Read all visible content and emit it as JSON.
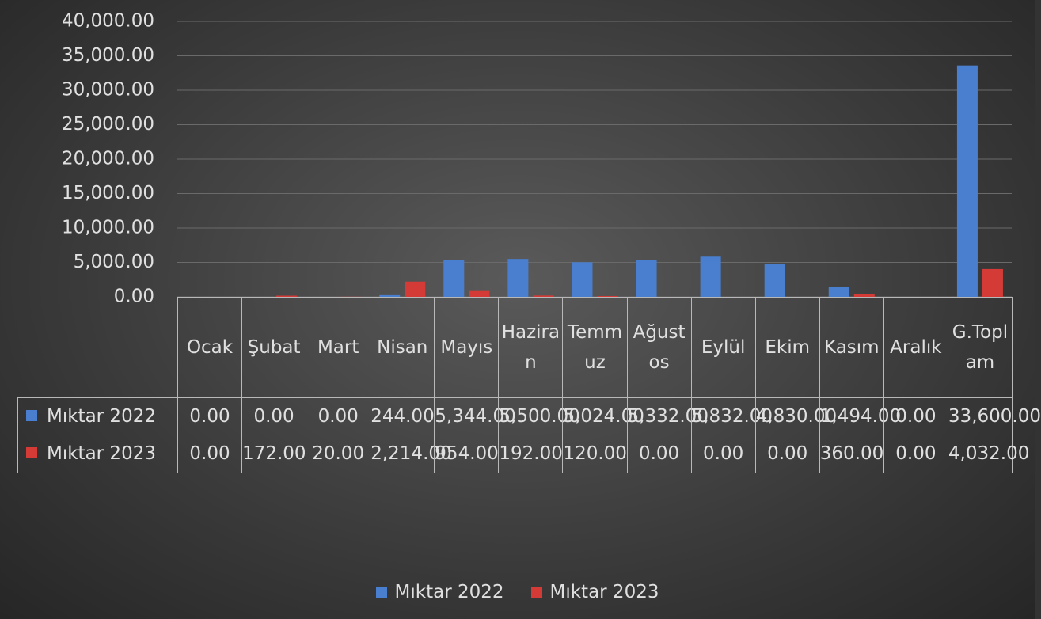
{
  "chart_data": {
    "type": "bar",
    "categories": [
      "Ocak",
      "Şubat",
      "Mart",
      "Nisan",
      "Mayıs",
      "Haziran",
      "Temmuz",
      "Ağustos",
      "Eylül",
      "Ekim",
      "Kasım",
      "Aralık",
      "G.Toplam"
    ],
    "series": [
      {
        "name": "Mıktar 2022",
        "color": "#4a7fd0",
        "values": [
          0,
          0,
          0,
          244,
          5344,
          5500,
          5024,
          5332,
          5832,
          4830,
          1494,
          0,
          33600
        ],
        "value_labels": [
          "0.00",
          "0.00",
          "0.00",
          "244.00",
          "5,344.00",
          "5,500.00",
          "5,024.00",
          "5,332.00",
          "5,832.00",
          "4,830.00",
          "1,494.00",
          "0.00",
          "33,600.00"
        ]
      },
      {
        "name": "Mıktar 2023",
        "color": "#d43b36",
        "values": [
          0,
          172,
          20,
          2214,
          954,
          192,
          120,
          0,
          0,
          0,
          360,
          0,
          4032
        ],
        "value_labels": [
          "0.00",
          "172.00",
          "20.00",
          "2,214.00",
          "954.00",
          "192.00",
          "120.00",
          "0.00",
          "0.00",
          "0.00",
          "360.00",
          "0.00",
          "4,032.00"
        ]
      }
    ],
    "ylim": [
      0,
      40000
    ],
    "yticks": [
      {
        "value": 0,
        "label": "0.00"
      },
      {
        "value": 5000,
        "label": "5,000.00"
      },
      {
        "value": 10000,
        "label": "10,000.00"
      },
      {
        "value": 15000,
        "label": "15,000.00"
      },
      {
        "value": 20000,
        "label": "20,000.00"
      },
      {
        "value": 25000,
        "label": "25,000.00"
      },
      {
        "value": 30000,
        "label": "30,000.00"
      },
      {
        "value": 35000,
        "label": "35,000.00"
      },
      {
        "value": 40000,
        "label": "40,000.00"
      }
    ],
    "grid": true,
    "legend": "bottom"
  }
}
